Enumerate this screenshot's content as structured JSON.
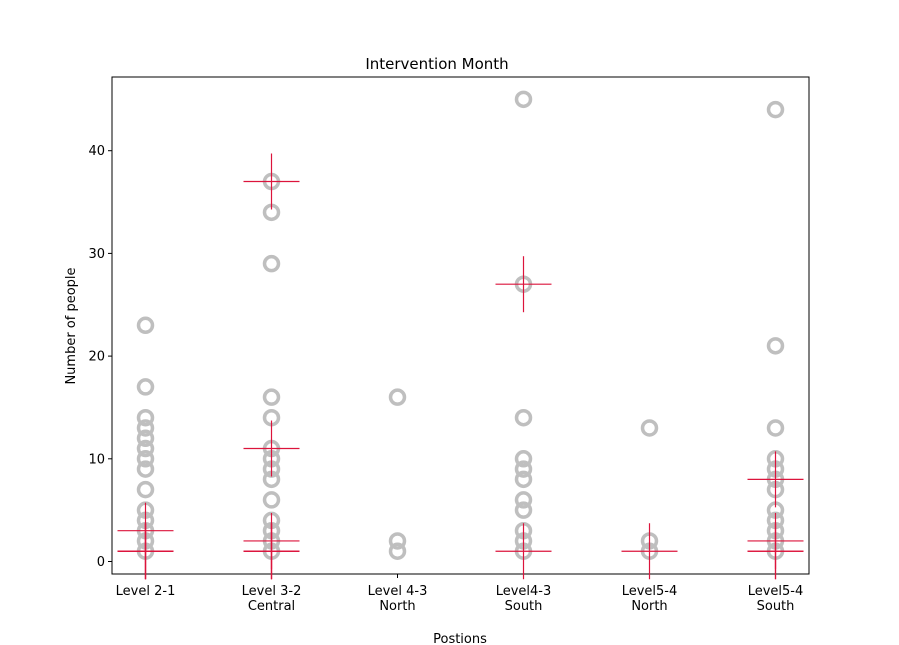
{
  "chart_data": {
    "type": "scatter",
    "title": "Intervention Month",
    "xlabel": "Postions",
    "ylabel": "Number of people",
    "ylim": [
      -1.2,
      47.5
    ],
    "yticks": [
      0,
      10,
      20,
      30,
      40
    ],
    "grid": false,
    "categories": [
      [
        "Level 2-1"
      ],
      [
        "Level 3-2",
        "Central"
      ],
      [
        "Level 4-3",
        "North"
      ],
      [
        "Level4-3",
        "South"
      ],
      [
        "Level5-4",
        "North"
      ],
      [
        "Level5-4",
        "South"
      ]
    ],
    "series": [
      {
        "marker": "hollow-circle",
        "color": "#bfbfbf",
        "points_by_category": [
          [
            1,
            2,
            3,
            4,
            5,
            7,
            9,
            10,
            11,
            12,
            13,
            14,
            17,
            23
          ],
          [
            1,
            2,
            3,
            4,
            6,
            8,
            9,
            10,
            11,
            14,
            16,
            29,
            34,
            37
          ],
          [
            1,
            2,
            16
          ],
          [
            1,
            2,
            3,
            5,
            6,
            8,
            9,
            10,
            14,
            27,
            45
          ],
          [
            1,
            2,
            13
          ],
          [
            1,
            2,
            3,
            4,
            5,
            7,
            8,
            9,
            10,
            13,
            21,
            44
          ]
        ]
      },
      {
        "marker": "plus",
        "color": "#dc143c",
        "points_by_category": [
          [
            1,
            1,
            1,
            1,
            3
          ],
          [
            1,
            1,
            1,
            2,
            11,
            37
          ],
          [],
          [
            1,
            27
          ],
          [
            1
          ],
          [
            1,
            1,
            2,
            8
          ]
        ]
      }
    ]
  }
}
